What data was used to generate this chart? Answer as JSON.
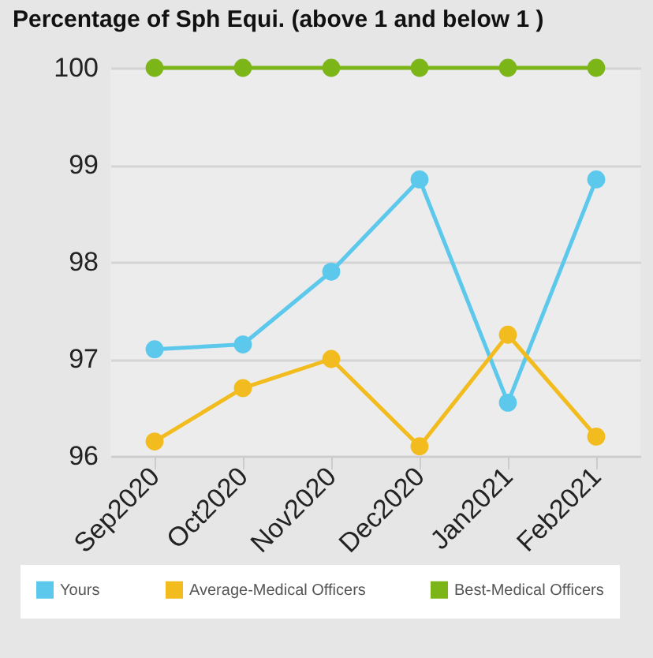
{
  "chart_data": {
    "type": "line",
    "title": "Percentage of Sph Equi. (above 1 and below 1 )",
    "categories": [
      "Sep2020",
      "Oct2020",
      "Nov2020",
      "Dec2020",
      "Jan2021",
      "Feb2021"
    ],
    "series": [
      {
        "name": "Yours",
        "color": "#5bc8ec",
        "values": [
          97.1,
          97.15,
          97.9,
          98.85,
          96.55,
          98.85
        ]
      },
      {
        "name": "Average-Medical Officers",
        "color": "#f2bc1f",
        "values": [
          96.15,
          96.7,
          97.0,
          96.1,
          97.25,
          96.2
        ]
      },
      {
        "name": "Best-Medical Officers",
        "color": "#7cb518",
        "values": [
          100,
          100,
          100,
          100,
          100,
          100
        ]
      }
    ],
    "ylim": [
      96,
      100
    ],
    "yticks": [
      96,
      97,
      98,
      99,
      100
    ],
    "grid": "y",
    "legend": "bottom",
    "marker": "circle",
    "line_style": "solid"
  }
}
